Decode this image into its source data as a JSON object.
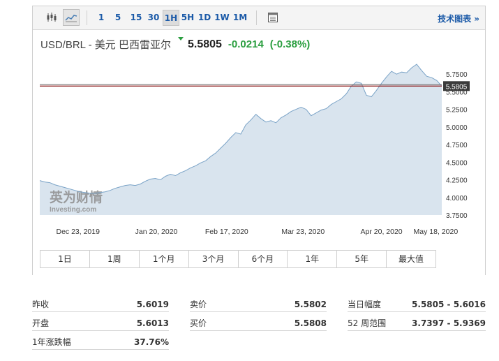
{
  "toolbar": {
    "chart_type_icons": [
      "candlestick-chart-icon",
      "area-chart-icon"
    ],
    "intervals": [
      "1",
      "5",
      "15",
      "30",
      "1H",
      "5H",
      "1D",
      "1W",
      "1M"
    ],
    "active_interval": "1H",
    "table_icon": "table-icon",
    "tech_chart_label": "技术图表 »"
  },
  "quote": {
    "name": "USD/BRL - 美元 巴西雷亚尔",
    "price": "5.5805",
    "change": "-0.0214",
    "change_pct": "(-0.38%)",
    "change_color": "#2a9e3f"
  },
  "chart_data": {
    "type": "area",
    "title": "",
    "xlabel": "",
    "ylabel": "",
    "x_tick_labels": [
      "Dec 23, 2019",
      "Jan 20, 2020",
      "Feb 17, 2020",
      "Mar 23, 2020",
      "Apr 20, 2020",
      "May 18, 2020"
    ],
    "y_tick_labels": [
      "5.7500",
      "5.5000",
      "5.2500",
      "5.0000",
      "4.7500",
      "4.5000",
      "4.2500",
      "4.0000",
      "3.7500"
    ],
    "ylim": [
      3.75,
      5.95
    ],
    "current_value": 5.5805,
    "current_label": "5.5805",
    "reference_line": 5.6019,
    "watermark": [
      "英为财情",
      "Investing.com"
    ],
    "series": [
      {
        "values": [
          4.24,
          4.22,
          4.21,
          4.18,
          4.16,
          4.14,
          4.12,
          4.1,
          4.08,
          4.07,
          4.06,
          4.06,
          4.07,
          4.08,
          4.1,
          4.13,
          4.15,
          4.17,
          4.18,
          4.17,
          4.19,
          4.23,
          4.26,
          4.27,
          4.25,
          4.3,
          4.33,
          4.31,
          4.35,
          4.38,
          4.42,
          4.45,
          4.49,
          4.52,
          4.58,
          4.63,
          4.7,
          4.77,
          4.85,
          4.92,
          4.9,
          5.03,
          5.1,
          5.18,
          5.12,
          5.07,
          5.09,
          5.06,
          5.13,
          5.17,
          5.22,
          5.25,
          5.28,
          5.25,
          5.16,
          5.2,
          5.24,
          5.26,
          5.32,
          5.36,
          5.4,
          5.47,
          5.58,
          5.64,
          5.62,
          5.45,
          5.43,
          5.52,
          5.62,
          5.71,
          5.79,
          5.75,
          5.78,
          5.77,
          5.84,
          5.89,
          5.8,
          5.72,
          5.7,
          5.66,
          5.58
        ]
      }
    ],
    "colors": {
      "line": "#7aa3c7",
      "area": "#d9e4ee",
      "price_line": "#8b1a1a",
      "reference_line": "#6b6b6b",
      "label_bg": "#3b3b3b"
    }
  },
  "ranges": [
    "1日",
    "1周",
    "1个月",
    "3个月",
    "6个月",
    "1年",
    "5年",
    "最大值"
  ],
  "stats": {
    "prev_close": {
      "label": "昨收",
      "value": "5.6019"
    },
    "open": {
      "label": "开盘",
      "value": "5.6013"
    },
    "yr_change": {
      "label": "1年涨跌幅",
      "value": "37.76%"
    },
    "bid": {
      "label": "卖价",
      "value": "5.5802"
    },
    "ask": {
      "label": "买价",
      "value": "5.5808"
    },
    "day_range": {
      "label": "当日幅度",
      "value": "5.5805 - 5.6016"
    },
    "week52_range": {
      "label": "52 周范围",
      "value": "3.7397 - 5.9369"
    }
  }
}
